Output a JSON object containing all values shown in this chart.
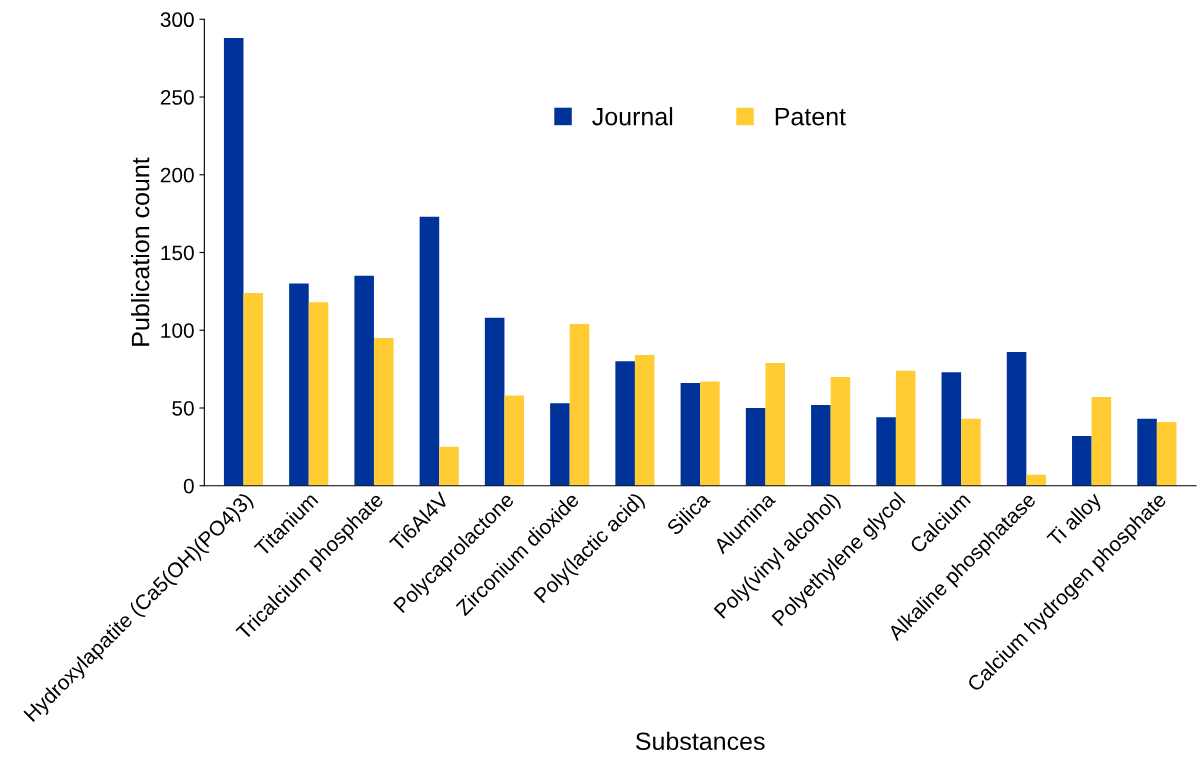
{
  "chart_data": {
    "type": "bar",
    "xlabel": "Substances",
    "ylabel": "Publication count",
    "categories": [
      "Hydroxylapatite (Ca5(OH)(PO4)3)",
      "Titanium",
      "Tricalcium phosphate",
      "Ti6Al4V",
      "Polycaprolactone",
      "Zirconium dioxide",
      "Poly(lactic acid)",
      "Silica",
      "Alumina",
      "Poly(vinyl alcohol)",
      "Polyethylene glycol",
      "Calcium",
      "Alkaline phosphatase",
      "Ti alloy",
      "Calcium hydrogen phosphate"
    ],
    "series": [
      {
        "name": "Journal",
        "color": "#003399",
        "values": [
          288,
          130,
          135,
          173,
          108,
          53,
          80,
          66,
          50,
          52,
          44,
          73,
          86,
          32,
          43
        ]
      },
      {
        "name": "Patent",
        "color": "#ffcc33",
        "values": [
          124,
          118,
          95,
          25,
          58,
          104,
          84,
          67,
          79,
          70,
          74,
          43,
          7,
          57,
          41
        ]
      }
    ],
    "ylim": [
      0,
      300
    ],
    "yticks": [
      0,
      50,
      100,
      150,
      200,
      250,
      300
    ],
    "grid": false,
    "legend": "top"
  }
}
